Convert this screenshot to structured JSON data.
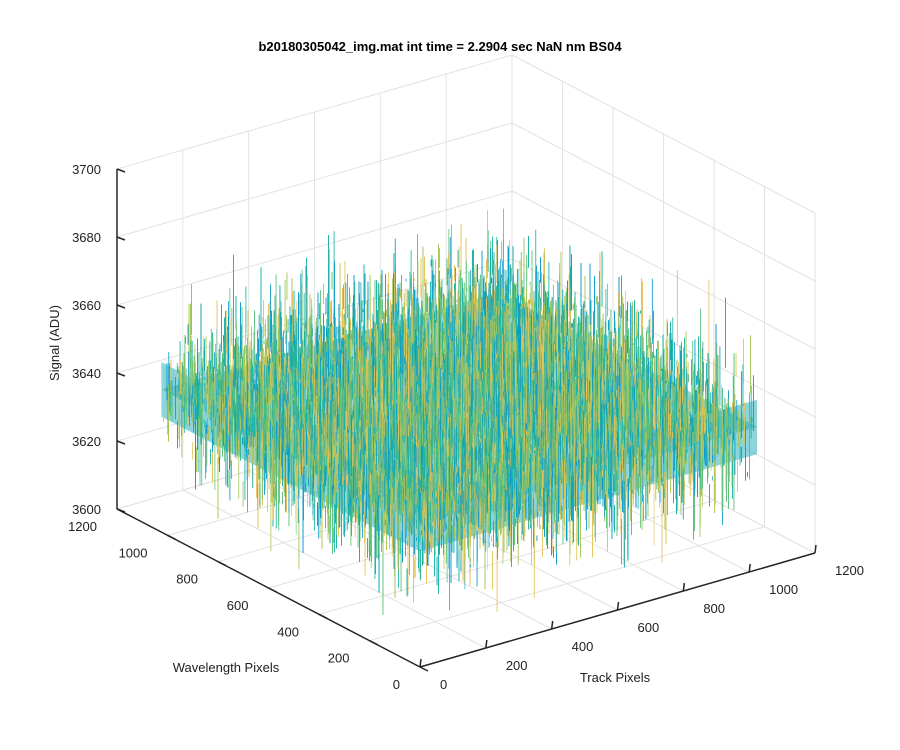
{
  "chart_data": {
    "type": "surface3d",
    "title": "b20180305042_img.mat int time = 2.2904 sec  NaN nm BS04",
    "xlabel": "Track Pixels",
    "ylabel": "Wavelength Pixels",
    "zlabel": "Signal (ADU)",
    "xlim": [
      0,
      1200
    ],
    "ylim": [
      0,
      1200
    ],
    "zlim": [
      3600,
      3700
    ],
    "x_ticks": [
      "0",
      "200",
      "400",
      "600",
      "800",
      "1000",
      "1200"
    ],
    "y_ticks": [
      "0",
      "200",
      "400",
      "600",
      "800",
      "1000",
      "1200"
    ],
    "z_ticks": [
      "3600",
      "3620",
      "3640",
      "3660",
      "3680",
      "3700"
    ],
    "grid": true,
    "surface": {
      "x_range": [
        0,
        1024
      ],
      "y_range": [
        0,
        1024
      ],
      "mean_signal": 3642,
      "noise_spread": 12,
      "colormap": [
        "#0a9cc9",
        "#1ab3a8",
        "#5cc07a",
        "#a8c75a",
        "#e6c35a"
      ]
    }
  }
}
